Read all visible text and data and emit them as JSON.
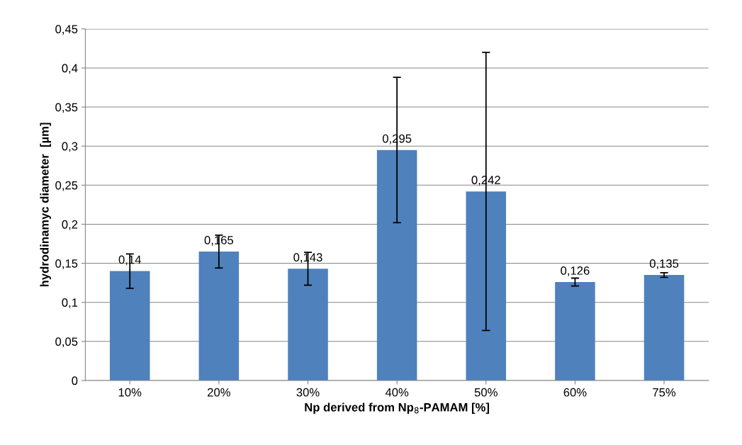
{
  "chart_data": {
    "type": "bar",
    "xlabel": "Np derived from Np$_{8}$-PAMAM [%]",
    "ylabel": "hydrodinamyc diameter  [µm]",
    "categories": [
      "10%",
      "20%",
      "30%",
      "40%",
      "50%",
      "60%",
      "75%"
    ],
    "values": [
      0.14,
      0.165,
      0.143,
      0.295,
      0.242,
      0.126,
      0.135
    ],
    "errors": [
      0.022,
      0.021,
      0.021,
      0.093,
      0.178,
      0.005,
      0.003
    ],
    "value_labels": [
      "0,14",
      "0,165",
      "0,143",
      "0,295",
      "0,242",
      "0,126",
      "0,135"
    ],
    "color": "#4f81bd",
    "ylim": [
      0,
      0.45
    ],
    "yticks": [
      {
        "value": 0,
        "label": "0"
      },
      {
        "value": 0.05,
        "label": "0,05"
      },
      {
        "value": 0.1,
        "label": "0,1"
      },
      {
        "value": 0.15,
        "label": "0,15"
      },
      {
        "value": 0.2,
        "label": "0,2"
      },
      {
        "value": 0.25,
        "label": "0,25"
      },
      {
        "value": 0.3,
        "label": "0,3"
      },
      {
        "value": 0.35,
        "label": "0,35"
      },
      {
        "value": 0.4,
        "label": "0,4"
      },
      {
        "value": 0.45,
        "label": "0,45"
      }
    ],
    "grid": "y",
    "legend": false
  }
}
